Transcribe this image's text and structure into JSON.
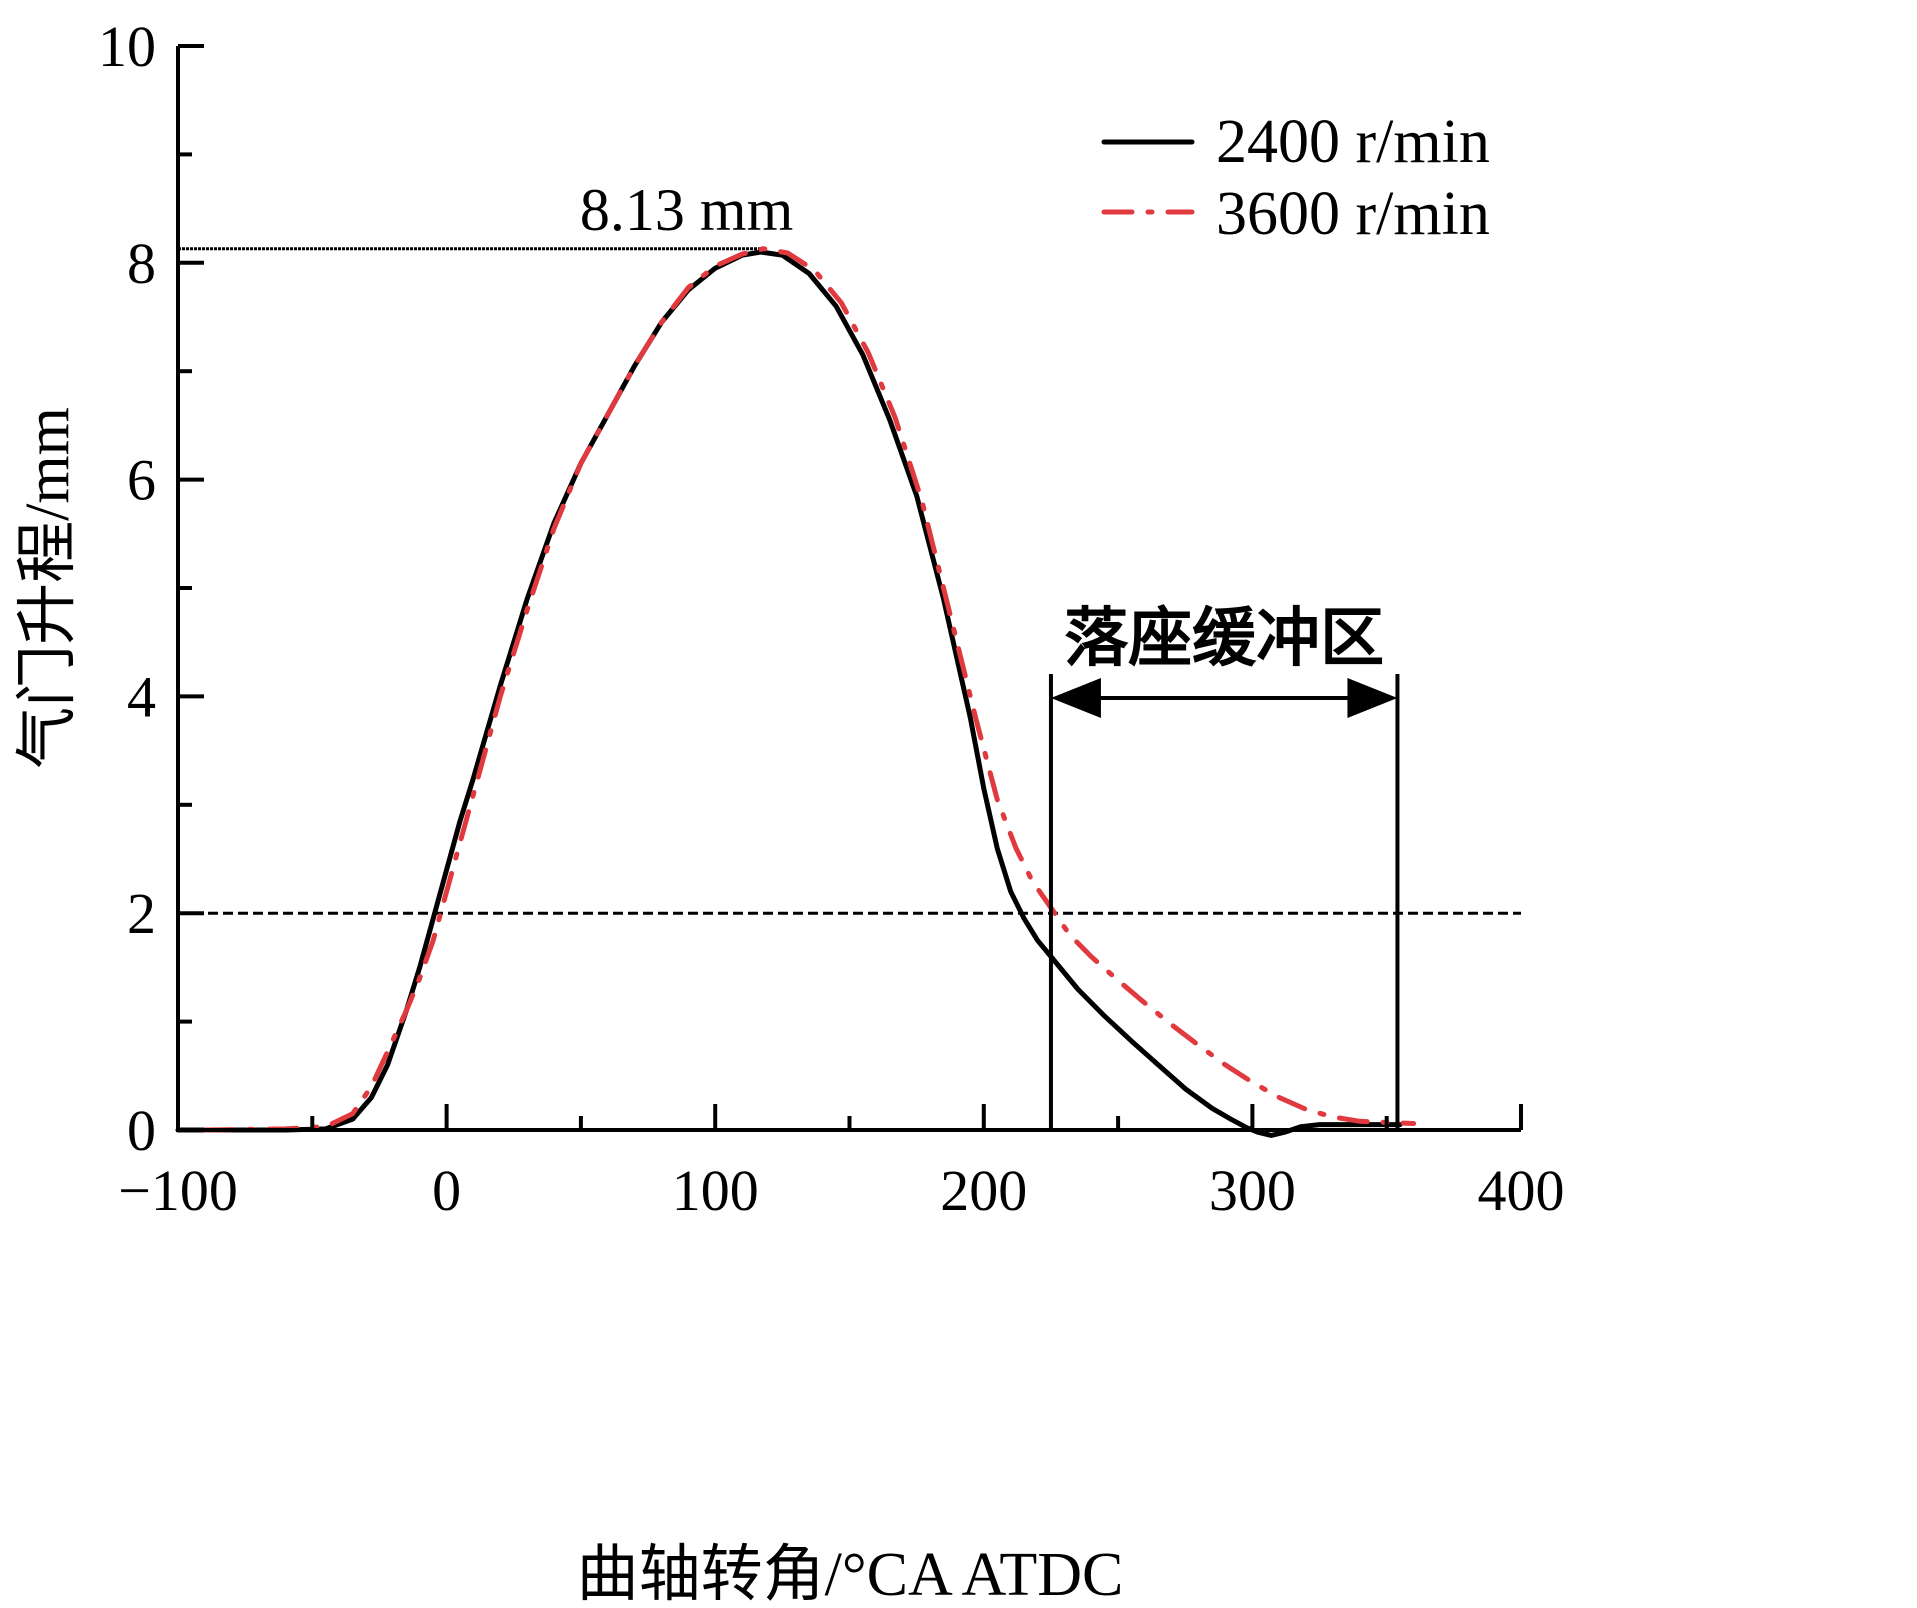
{
  "chart_data": {
    "type": "line",
    "title": "",
    "xlabel": "曲轴转角/°CA ATDC",
    "ylabel": "气门升程/mm",
    "xlim": [
      -100,
      400
    ],
    "ylim": [
      0,
      10
    ],
    "x_ticks": [
      -100,
      0,
      100,
      200,
      300,
      400
    ],
    "x_tick_labels": [
      "−100",
      "0",
      "100",
      "200",
      "300",
      "400"
    ],
    "x_minor_ticks": [
      -50,
      50,
      150,
      250,
      350
    ],
    "y_ticks": [
      0,
      2,
      4,
      6,
      8,
      10
    ],
    "y_tick_labels": [
      "0",
      "2",
      "4",
      "6",
      "8",
      "10"
    ],
    "y_minor_ticks": [
      1,
      3,
      5,
      7,
      9
    ],
    "grid": false,
    "legend": {
      "position": "top-right",
      "entries": [
        {
          "label": "2400 r/min",
          "color": "#000000",
          "style": "solid"
        },
        {
          "label": "3600 r/min",
          "color": "#e0393e",
          "style": "dash-dot"
        }
      ]
    },
    "series": [
      {
        "name": "2400 r/min",
        "color": "#000000",
        "style": "solid",
        "x": [
          -100,
          -60,
          -45,
          -35,
          -28,
          -22,
          -15,
          -10,
          -5,
          0,
          5,
          10,
          20,
          30,
          40,
          50,
          60,
          70,
          80,
          90,
          100,
          110,
          117,
          125,
          135,
          145,
          155,
          165,
          175,
          185,
          195,
          200,
          205,
          210,
          215,
          220,
          225,
          235,
          245,
          255,
          265,
          275,
          285,
          292,
          298,
          302,
          307,
          312,
          318,
          325,
          340,
          355
        ],
        "y": [
          0,
          0,
          0.01,
          0.1,
          0.3,
          0.6,
          1.1,
          1.5,
          1.95,
          2.4,
          2.85,
          3.25,
          4.1,
          4.9,
          5.6,
          6.15,
          6.6,
          7.05,
          7.45,
          7.75,
          7.95,
          8.07,
          8.1,
          8.07,
          7.9,
          7.6,
          7.15,
          6.55,
          5.85,
          4.9,
          3.8,
          3.15,
          2.6,
          2.2,
          1.95,
          1.75,
          1.6,
          1.3,
          1.05,
          0.82,
          0.6,
          0.38,
          0.2,
          0.1,
          0.02,
          -0.02,
          -0.05,
          -0.02,
          0.03,
          0.05,
          0.05,
          0.05
        ]
      },
      {
        "name": "3600 r/min",
        "color": "#e0393e",
        "style": "dash-dot",
        "x": [
          -90,
          -60,
          -45,
          -35,
          -28,
          -22,
          -15,
          -10,
          -5,
          0,
          5,
          10,
          20,
          30,
          40,
          50,
          60,
          70,
          80,
          90,
          100,
          110,
          118,
          127,
          137,
          147,
          157,
          167,
          177,
          187,
          197,
          205,
          212,
          218,
          225,
          232,
          240,
          250,
          260,
          270,
          280,
          290,
          300,
          310,
          320,
          330,
          340,
          350,
          360
        ],
        "y": [
          0,
          0.01,
          0.03,
          0.15,
          0.4,
          0.72,
          1.1,
          1.4,
          1.75,
          2.2,
          2.65,
          3.1,
          4.0,
          4.8,
          5.55,
          6.15,
          6.6,
          7.05,
          7.45,
          7.77,
          7.97,
          8.08,
          8.13,
          8.09,
          7.93,
          7.63,
          7.17,
          6.57,
          5.8,
          4.8,
          3.8,
          3.05,
          2.6,
          2.3,
          2.05,
          1.8,
          1.6,
          1.38,
          1.17,
          0.97,
          0.78,
          0.6,
          0.44,
          0.3,
          0.19,
          0.12,
          0.08,
          0.07,
          0.06
        ]
      }
    ],
    "annotations": {
      "peak_label": "8.13 mm",
      "peak_value": 8.13,
      "peak_x": 117,
      "reference_line_y": 2,
      "buffer_zone_label": "落座缓冲区",
      "buffer_zone_x": [
        225,
        354
      ]
    }
  }
}
